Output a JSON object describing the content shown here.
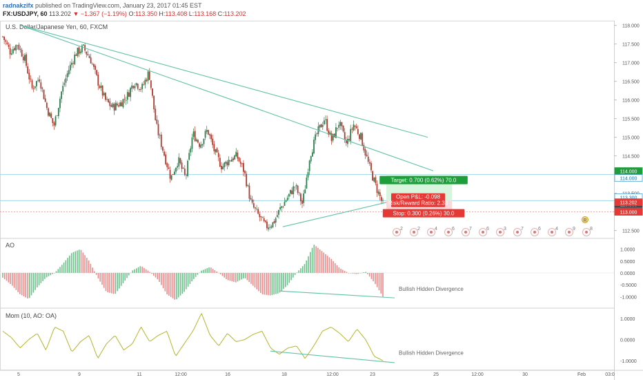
{
  "header": {
    "author": "radnakzifx",
    "published": " published on TradingView.com, January 23, 2017 01:45 EST",
    "symbol": "FX:USDJPY, 60",
    "last": "113.202",
    "change": "−1.367 (−1.19%)",
    "open_label": "O:",
    "open": "113.350",
    "high_label": "H:",
    "high": "113.408",
    "low_label": "L:",
    "low": "113.168",
    "close_label": "C:",
    "close": "113.202"
  },
  "colors": {
    "up": "#2e7d4f",
    "down": "#b03a2e",
    "trend": "#5fc1a7",
    "target_fill": "#d6f5dc",
    "stop_fill": "#f9d9d9",
    "green_box": "#1e9e3a",
    "red_box": "#e53935",
    "ao_up": "#6bc08a",
    "ao_down": "#e88b8b",
    "mom_line": "#b3b52a",
    "hline": "#9fd4e8"
  },
  "chart_data": [
    {
      "type": "candlestick",
      "subtitle": "U.S. Dollar/Japanese Yen, 60, FXCM",
      "ylim": [
        112.4,
        118.05
      ],
      "y_ticks": [
        "118.000",
        "117.500",
        "117.000",
        "116.500",
        "116.000",
        "115.500",
        "115.000",
        "114.500",
        "114.000",
        "113.500",
        "113.000",
        "112.500"
      ],
      "x_ticks": [
        "5",
        "9",
        "11",
        "12:00",
        "16",
        "18",
        "12:00",
        "23",
        "25",
        "12:00",
        "30",
        "Feb",
        "03:0"
      ],
      "price_path": [
        117.7,
        117.3,
        117.5,
        117.1,
        116.3,
        116.6,
        115.8,
        115.3,
        116.2,
        116.8,
        117.25,
        117.4,
        117.1,
        116.5,
        116.0,
        115.8,
        115.9,
        116.1,
        116.5,
        116.3,
        116.75,
        115.3,
        114.6,
        113.9,
        114.4,
        113.9,
        115.1,
        114.8,
        115.2,
        114.6,
        114.2,
        114.4,
        114.5,
        114.1,
        113.2,
        112.9,
        112.6,
        112.7,
        113.1,
        113.4,
        113.7,
        113.2,
        114.5,
        115.1,
        115.5,
        114.9,
        115.4,
        114.8,
        115.35,
        115.0,
        114.3,
        113.7,
        113.2
      ],
      "candle_count": 260,
      "horizontal_lines": [
        114.0,
        113.3
      ],
      "position": {
        "entry": 113.3,
        "target": 114.0,
        "stop": 113.0,
        "target_label": "Target: 0.700 (0.62%) 70.0",
        "stop_label": "Stop: 0.300 (0.26%) 30.0",
        "pl_label": "Open P&L: -0.098",
        "rr_label": "Risk/Reward Ratio: 2.33"
      },
      "price_tags": [
        {
          "label": "114.000",
          "value": 114.0,
          "style": "green"
        },
        {
          "label": "114.000",
          "value": 114.0,
          "style": "blue-outline"
        },
        {
          "label": "113.300",
          "value": 113.3,
          "style": "blue-outline"
        },
        {
          "label": "113.300",
          "value": 113.3,
          "style": "dark"
        },
        {
          "label": "113.202",
          "value": 113.202,
          "style": "red"
        },
        {
          "label": "17:24",
          "value": 113.1,
          "style": "red"
        },
        {
          "label": "113.000",
          "value": 113.0,
          "style": "red"
        }
      ],
      "event_counts": [
        "2",
        "2",
        "4",
        "6",
        "7",
        "6",
        "3",
        "7",
        "6",
        "4",
        "9",
        "8"
      ],
      "event_letters": [
        "R"
      ]
    },
    {
      "type": "histogram",
      "title": "AO",
      "ylim": [
        -1.25,
        1.25
      ],
      "y_ticks": [
        "1.0000",
        "0.5000",
        "0.0000",
        "-0.5000",
        "-1.0000"
      ],
      "values_path": [
        -0.2,
        -0.5,
        -0.9,
        -1.1,
        -0.6,
        -0.2,
        0.0,
        0.4,
        0.85,
        1.0,
        0.5,
        -0.2,
        -0.8,
        -0.9,
        -0.4,
        0.1,
        0.3,
        0.05,
        -0.3,
        -0.9,
        -1.15,
        -0.8,
        -0.3,
        0.1,
        0.25,
        0.0,
        -0.3,
        -0.4,
        -0.2,
        -0.55,
        -0.9,
        -0.95,
        -0.85,
        -0.5,
        0.0,
        0.4,
        1.2,
        0.9,
        0.6,
        0.2,
        0.0,
        -0.05,
        0.05,
        -0.4,
        -1.0
      ],
      "annotation": "Bullish Hidden Divergence"
    },
    {
      "type": "line",
      "title": "Mom (10, AO: OA)",
      "ylim": [
        -1.3,
        1.3
      ],
      "y_ticks": [
        "1.0000",
        "0.0000",
        "-1.0000"
      ],
      "values_path": [
        0.4,
        0.1,
        -0.4,
        0.0,
        0.3,
        -0.5,
        0.6,
        0.4,
        -0.6,
        -0.1,
        0.2,
        -0.9,
        -0.2,
        0.2,
        -0.5,
        -0.2,
        0.6,
        -0.1,
        0.2,
        0.4,
        -0.8,
        -0.2,
        0.4,
        1.25,
        0.2,
        -0.3,
        0.3,
        -0.1,
        0.0,
        0.25,
        0.4,
        -0.4,
        -0.7,
        -0.4,
        -0.3,
        -0.9,
        -0.3,
        0.4,
        0.6,
        0.3,
        -0.1,
        0.5,
        0.0,
        -0.8,
        -1.0
      ],
      "annotation": "Bullish Hidden Divergence"
    }
  ]
}
